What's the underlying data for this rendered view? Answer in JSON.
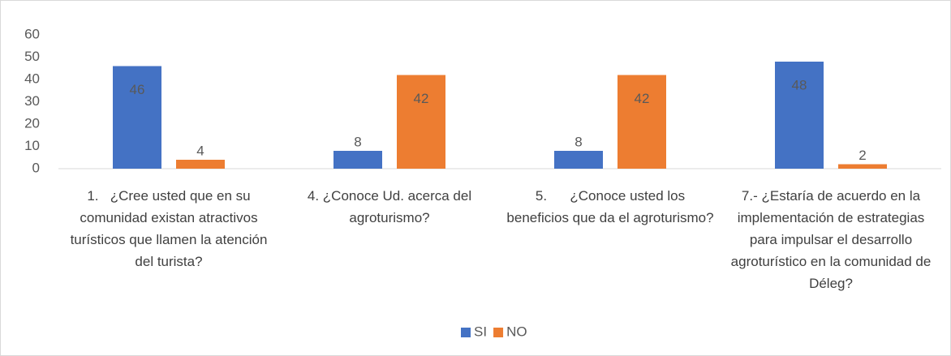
{
  "chart_data": {
    "type": "bar",
    "categories": [
      "1.   ¿Cree usted que en su comunidad existan atractivos turísticos que llamen la atención del turista?",
      "4. ¿Conoce Ud. acerca del agroturismo?",
      "5.      ¿Conoce usted los beneficios que da el agroturismo?",
      "7.- ¿Estaría de acuerdo en la implementación de estrategias para impulsar el desarrollo agroturístico en la comunidad de Déleg?"
    ],
    "series": [
      {
        "name": "SI",
        "color": "#4472c4",
        "values": [
          46,
          8,
          8,
          48
        ]
      },
      {
        "name": "NO",
        "color": "#ed7d31",
        "values": [
          4,
          42,
          42,
          2
        ]
      }
    ],
    "ylim": [
      0,
      60
    ],
    "yticks": [
      0,
      10,
      20,
      30,
      40,
      50,
      60
    ],
    "grid": false,
    "legend": "bottom"
  }
}
